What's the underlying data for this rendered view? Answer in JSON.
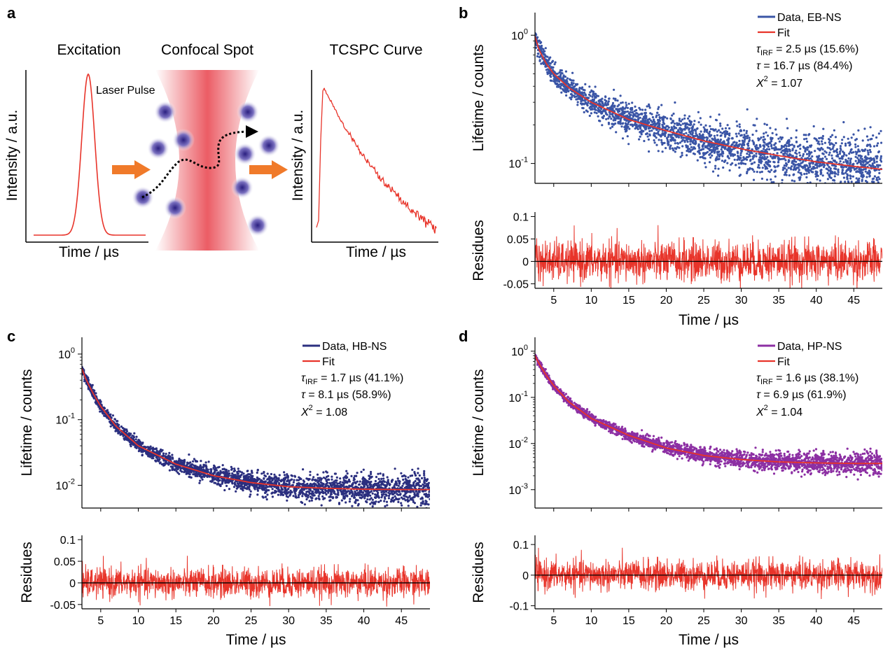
{
  "colors": {
    "eb": "#3a55a6",
    "hb": "#2b2f7f",
    "hp": "#8c2fa3",
    "fit": "#e8342a",
    "residue": "#e8342a",
    "arrow": "#f07a2a",
    "particle": "#4a3fa0"
  },
  "schematic": {
    "panel_label": "a",
    "excitation_title": "Excitation",
    "confocal_title": "Confocal Spot",
    "tcspc_title": "TCSPC Curve",
    "laser_pulse_label": "Laser Pulse",
    "ylabel": "Intensity / a.u.",
    "xlabel": "Time / µs",
    "icons": [
      "orange-arrow-icon",
      "particle-icon",
      "trajectory-arrow-icon"
    ]
  },
  "chart_data": [
    {
      "panel_label": "b",
      "type": "scatter",
      "xlabel": "",
      "ylabel": "Lifetime / counts",
      "yscale": "log",
      "xlim": [
        2.5,
        48.8
      ],
      "ylim": [
        0.07,
        1.5
      ],
      "y_ticks": [
        {
          "value": 1,
          "label": "10^0"
        },
        {
          "value": 0.1,
          "label": "10^-1"
        }
      ],
      "series": [
        {
          "name": "Data, EB-NS",
          "kind": "data",
          "color_key": "eb",
          "x": [
            2.5,
            3,
            4,
            5,
            7,
            10,
            15,
            20,
            25,
            30,
            35,
            40,
            45,
            48.8
          ],
          "y": [
            0.98,
            0.78,
            0.6,
            0.5,
            0.39,
            0.3,
            0.22,
            0.18,
            0.15,
            0.13,
            0.115,
            0.103,
            0.095,
            0.09
          ]
        },
        {
          "name": "Fit",
          "kind": "fit",
          "color_key": "fit"
        }
      ],
      "fit_params": {
        "tau_irf": "= 2.5 µs (15.6%)",
        "tau": "= 16.7 µs (84.4%)",
        "chi2": "= 1.07"
      },
      "residues": {
        "ylabel": "Residues",
        "xlabel": "Time / µs",
        "ylim": [
          -0.06,
          0.11
        ],
        "y_ticks": [
          0.1,
          0.05,
          0,
          -0.05
        ],
        "y_tick_labels": [
          "0.1",
          "0.05",
          "0",
          "-0.05"
        ],
        "x_ticks": [
          5,
          10,
          15,
          20,
          25,
          30,
          35,
          40,
          45
        ],
        "noise_amplitude": 0.045,
        "color_key": "residue"
      }
    },
    {
      "panel_label": "c",
      "type": "scatter",
      "xlabel": "",
      "ylabel": "Lifetime / counts",
      "yscale": "log",
      "xlim": [
        2.5,
        48.8
      ],
      "ylim": [
        0.0045,
        1.8
      ],
      "y_ticks": [
        {
          "value": 1,
          "label": "10^0"
        },
        {
          "value": 0.1,
          "label": "10^-1"
        },
        {
          "value": 0.01,
          "label": "10^-2"
        }
      ],
      "series": [
        {
          "name": "Data, HB-NS",
          "kind": "data",
          "color_key": "hb",
          "x": [
            2.5,
            3,
            4,
            5,
            7,
            10,
            15,
            20,
            25,
            30,
            35,
            40,
            45,
            48.8
          ],
          "y": [
            0.6,
            0.42,
            0.25,
            0.16,
            0.08,
            0.04,
            0.021,
            0.014,
            0.011,
            0.0095,
            0.009,
            0.0087,
            0.0086,
            0.0086
          ]
        },
        {
          "name": "Fit",
          "kind": "fit",
          "color_key": "fit"
        }
      ],
      "fit_params": {
        "tau_irf": "= 1.7 µs (41.1%)",
        "tau": "= 8.1 µs (58.9%)",
        "chi2": "= 1.08"
      },
      "residues": {
        "ylabel": "Residues",
        "xlabel": "Time / µs",
        "ylim": [
          -0.06,
          0.11
        ],
        "y_ticks": [
          0.1,
          0.05,
          0,
          -0.05
        ],
        "y_tick_labels": [
          "0.1",
          "0.05",
          "0",
          "-0.05"
        ],
        "x_ticks": [
          5,
          10,
          15,
          20,
          25,
          30,
          35,
          40,
          45
        ],
        "noise_amplitude": 0.035,
        "color_key": "residue"
      }
    },
    {
      "panel_label": "d",
      "type": "scatter",
      "xlabel": "",
      "ylabel": "Lifetime / counts",
      "yscale": "log",
      "xlim": [
        2.5,
        48.8
      ],
      "ylim": [
        0.0004,
        2.0
      ],
      "y_ticks": [
        {
          "value": 1,
          "label": "10^0"
        },
        {
          "value": 0.1,
          "label": "10^-1"
        },
        {
          "value": 0.01,
          "label": "10^-2"
        },
        {
          "value": 0.001,
          "label": "10^-3"
        }
      ],
      "series": [
        {
          "name": "Data, HP-NS",
          "kind": "data",
          "color_key": "hp",
          "x": [
            2.5,
            3,
            4,
            5,
            7,
            10,
            15,
            20,
            25,
            30,
            35,
            40,
            45,
            48.8
          ],
          "y": [
            0.8,
            0.55,
            0.3,
            0.18,
            0.08,
            0.035,
            0.015,
            0.008,
            0.0055,
            0.0045,
            0.004,
            0.0038,
            0.0037,
            0.0037
          ]
        },
        {
          "name": "Fit",
          "kind": "fit",
          "color_key": "fit"
        }
      ],
      "fit_params": {
        "tau_irf": "= 1.6 µs (38.1%)",
        "tau": "= 6.9 µs (61.9%)",
        "chi2": "= 1.04"
      },
      "residues": {
        "ylabel": "Residues",
        "xlabel": "Time / µs",
        "ylim": [
          -0.11,
          0.13
        ],
        "y_ticks": [
          0.1,
          0,
          -0.1
        ],
        "y_tick_labels": [
          "0.1",
          "0",
          "-0.1"
        ],
        "x_ticks": [
          5,
          10,
          15,
          20,
          25,
          30,
          35,
          40,
          45
        ],
        "noise_amplitude": 0.05,
        "color_key": "residue"
      }
    }
  ]
}
